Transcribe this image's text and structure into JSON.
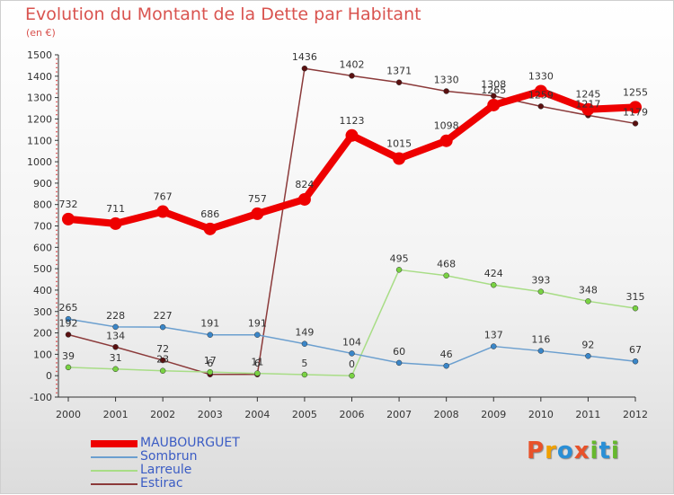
{
  "title": "Evolution du Montant de la Dette par Habitant",
  "subtitle": "(en €)",
  "logo": {
    "text": "Proxiti",
    "letters": [
      "P",
      "r",
      "o",
      "x",
      "i",
      "t",
      "i"
    ],
    "colors": [
      "#e8522a",
      "#f0a000",
      "#2a8fd6",
      "#e8522a",
      "#66b82e",
      "#2a8fd6",
      "#66b82e"
    ]
  },
  "chart_data": {
    "type": "line",
    "x": [
      "2000",
      "2001",
      "2002",
      "2003",
      "2004",
      "2005",
      "2006",
      "2007",
      "2008",
      "2009",
      "2010",
      "2011",
      "2012"
    ],
    "ylim": [
      -100,
      1500
    ],
    "yticks": [
      -100,
      0,
      100,
      200,
      300,
      400,
      500,
      600,
      700,
      800,
      900,
      1000,
      1100,
      1200,
      1300,
      1400,
      1500
    ],
    "grid": false,
    "legend_position": "bottom-left",
    "series": [
      {
        "name": "MAUBOURGUET",
        "color": "#ee0000",
        "marker": "#ee0000",
        "width": 8,
        "radius": 7,
        "labels": [
          "732",
          "711",
          "767",
          "686",
          "757",
          "824",
          "1123",
          "1015",
          "1098",
          "1265",
          "1330",
          "1245",
          "1255"
        ],
        "values": [
          732,
          711,
          767,
          686,
          757,
          824,
          1123,
          1015,
          1098,
          1265,
          1330,
          1245,
          1255
        ]
      },
      {
        "name": "Sombrun",
        "color": "#6b9fcf",
        "marker": "#3a86c8",
        "width": 1.5,
        "radius": 3,
        "labels": [
          "265",
          "228",
          "227",
          "191",
          "191",
          "149",
          "104",
          "60",
          "46",
          "137",
          "116",
          "92",
          "67"
        ],
        "values": [
          265,
          228,
          227,
          191,
          191,
          149,
          104,
          60,
          46,
          137,
          116,
          92,
          67
        ]
      },
      {
        "name": "Larreule",
        "color": "#a8dd86",
        "marker": "#79d243",
        "width": 1.5,
        "radius": 3,
        "labels": [
          "39",
          "31",
          "23",
          "17",
          "11",
          "5",
          "0",
          "495",
          "468",
          "424",
          "393",
          "348",
          "315"
        ],
        "values": [
          39,
          31,
          23,
          17,
          11,
          5,
          0,
          495,
          468,
          424,
          393,
          348,
          315
        ]
      },
      {
        "name": "Estirac",
        "color": "#8b3a3a",
        "marker": "#5a1010",
        "width": 1.5,
        "radius": 3,
        "labels": [
          "192",
          "134",
          "72",
          "6",
          "6",
          "1436",
          "1402",
          "1371",
          "1330",
          "1308",
          "1259",
          "1217",
          "1179"
        ],
        "values": [
          192,
          134,
          72,
          6,
          6,
          1436,
          1402,
          1371,
          1330,
          1308,
          1259,
          1217,
          1179
        ]
      }
    ]
  }
}
